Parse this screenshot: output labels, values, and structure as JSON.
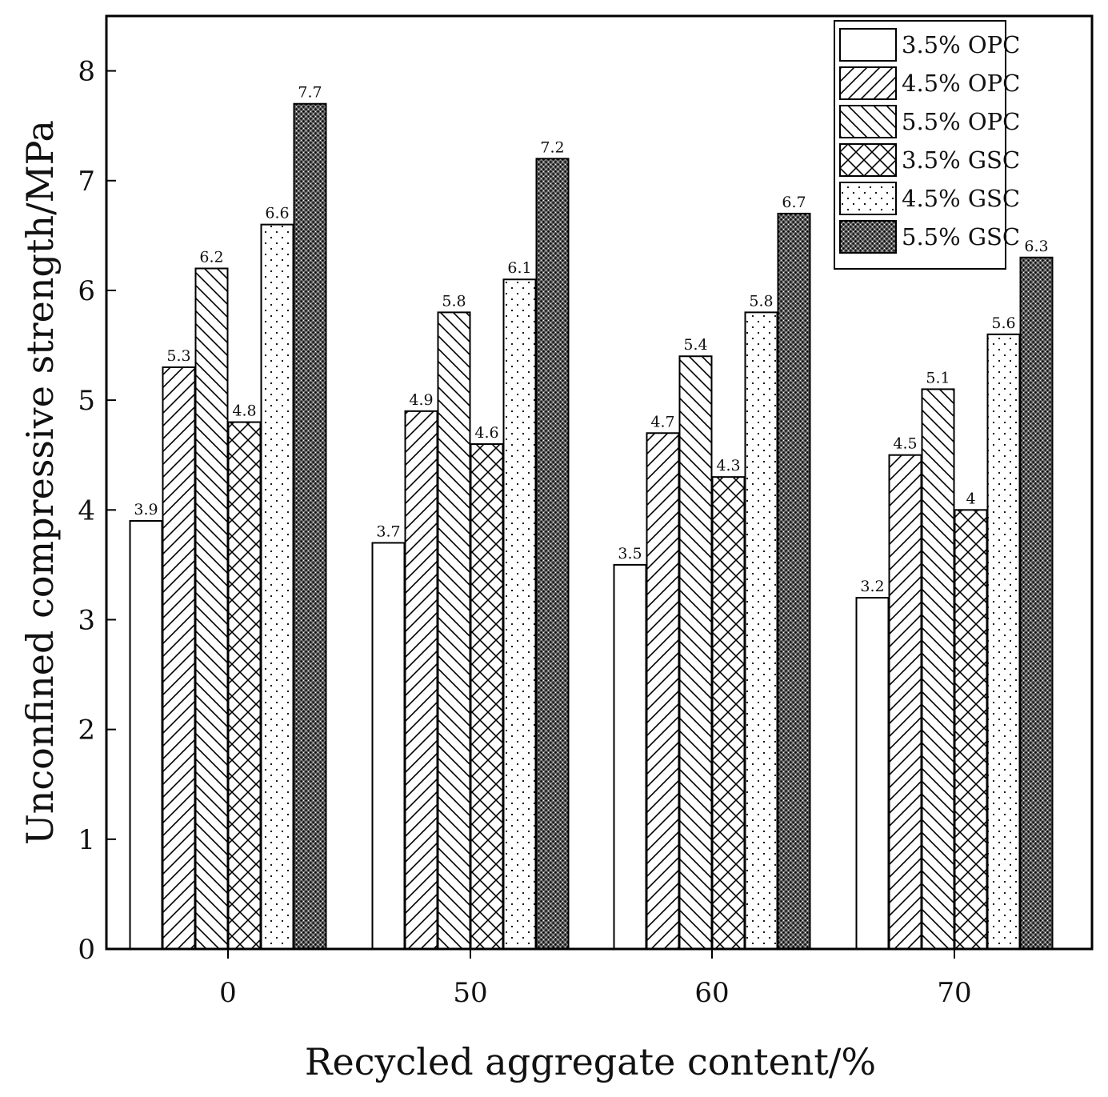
{
  "chart_data": {
    "type": "bar",
    "title": "",
    "xlabel": "Recycled aggregate content/%",
    "ylabel": "Unconfined compressive strength/MPa",
    "categories": [
      "0",
      "50",
      "60",
      "70"
    ],
    "ylim": [
      0,
      8.5
    ],
    "yticks": [
      "0",
      "1",
      "2",
      "3",
      "4",
      "5",
      "6",
      "7",
      "8"
    ],
    "legend_position": "top-right",
    "grid": false,
    "series": [
      {
        "name": "3.5% OPC",
        "pattern": "blank",
        "values": [
          3.9,
          3.7,
          3.5,
          3.2
        ],
        "labels": [
          "3.9",
          "3.7",
          "3.5",
          "3.2"
        ]
      },
      {
        "name": "4.5% OPC",
        "pattern": "forward-diagonal",
        "values": [
          5.3,
          4.9,
          4.7,
          4.5
        ],
        "labels": [
          "5.3",
          "4.9",
          "4.7",
          "4.5"
        ]
      },
      {
        "name": "5.5% OPC",
        "pattern": "back-diagonal",
        "values": [
          6.2,
          5.8,
          5.4,
          5.1
        ],
        "labels": [
          "6.2",
          "5.8",
          "5.4",
          "5.1"
        ]
      },
      {
        "name": "3.5% GSC",
        "pattern": "crosshatch",
        "values": [
          4.8,
          4.6,
          4.3,
          4.0
        ],
        "labels": [
          "4.8",
          "4.6",
          "4.3",
          "4"
        ]
      },
      {
        "name": "4.5% GSC",
        "pattern": "sparse-dots",
        "values": [
          6.6,
          6.1,
          5.8,
          5.6
        ],
        "labels": [
          "6.6",
          "6.1",
          "5.8",
          "5.6"
        ]
      },
      {
        "name": "5.5% GSC",
        "pattern": "dense-dots",
        "values": [
          7.7,
          7.2,
          6.7,
          6.3
        ],
        "labels": [
          "7.7",
          "7.2",
          "6.7",
          "6.3"
        ]
      }
    ]
  }
}
